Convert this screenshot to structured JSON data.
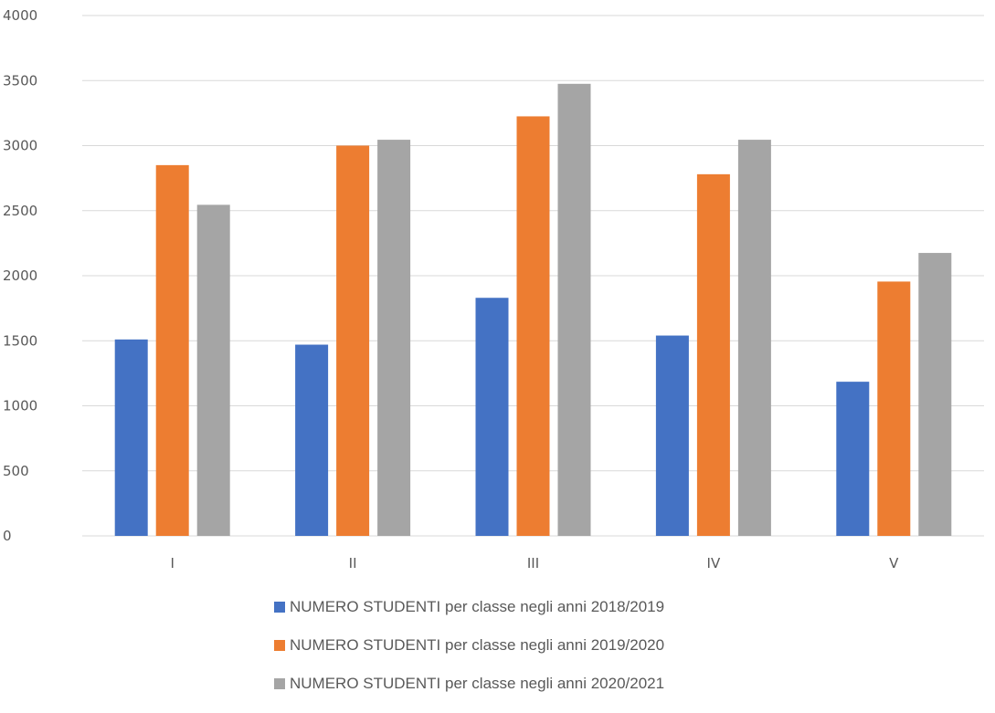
{
  "chart_data": {
    "type": "bar",
    "categories": [
      "I",
      "II",
      "III",
      "IV",
      "V"
    ],
    "series": [
      {
        "name": "NUMERO STUDENTI per classe negli anni 2018/2019",
        "color": "#4472c4",
        "values": [
          1510,
          1470,
          1830,
          1540,
          1185
        ]
      },
      {
        "name": "NUMERO STUDENTI per classe negli anni 2019/2020",
        "color": "#ed7d31",
        "values": [
          2850,
          3000,
          3225,
          2780,
          1955
        ]
      },
      {
        "name": "NUMERO STUDENTI per classe negli anni 2020/2021",
        "color": "#a5a5a5",
        "values": [
          2545,
          3045,
          3475,
          3045,
          2175
        ]
      }
    ],
    "yticks": [
      0,
      500,
      1000,
      1500,
      2000,
      2500,
      3000,
      3500,
      4000
    ],
    "ylim": [
      0,
      4000
    ],
    "grid": true,
    "legend_position": "bottom"
  }
}
